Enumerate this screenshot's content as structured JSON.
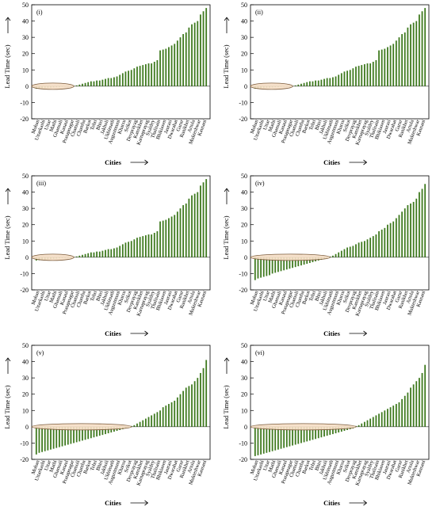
{
  "figure": {
    "ylabel": "Lead Time (sec)",
    "xlabel": "Cities",
    "colors": {
      "bar": "#3f7a1f",
      "ellipse_fill": "#f6dfc6",
      "ellipse_stroke": "#7a5a3a",
      "axis": "#000000"
    },
    "cities": [
      "Mohan",
      "Uttarkashi",
      "Uttar",
      "Mathi",
      "Ghansali",
      "Kanaul",
      "Pratapnagar",
      "Chamoli",
      "Chamba",
      "Barkot",
      "Tehri",
      "Bhiri",
      "Jakholi",
      "Ukhimath",
      "Augustmuni",
      "Kharsu",
      "Srikot",
      "Devprayag",
      "Kanskhet",
      "Karnaprayag",
      "Syaldey",
      "Thalisain",
      "Bhikiasen",
      "Jaurasi",
      "Dwarahat",
      "Garur",
      "Ranikhet",
      "Artola",
      "Mukteshwar",
      "Kausani"
    ]
  },
  "chart_data": [
    {
      "type": "bar",
      "panel_label": "(i)",
      "ylim": [
        -20,
        50
      ],
      "yticks": [
        -20,
        -10,
        0,
        10,
        20,
        30,
        40,
        50
      ],
      "values": [
        -1.5,
        -1.3,
        -1.2,
        -1.0,
        -0.9,
        -0.8,
        -0.7,
        -0.6,
        -0.5,
        -0.4,
        -0.3,
        -0.2,
        -0.1,
        0.2,
        0.5,
        1,
        1.5,
        2,
        2.5,
        3,
        3,
        3.5,
        3.5,
        4,
        4.5,
        5,
        5,
        5.5,
        6,
        7,
        8,
        9,
        9.5,
        10,
        11,
        12,
        12.5,
        13,
        13.5,
        14,
        14,
        15,
        16,
        22,
        22.5,
        23,
        24,
        25,
        26,
        28,
        30,
        32,
        33,
        36,
        38,
        39,
        40,
        44,
        46,
        48
      ]
    },
    {
      "type": "bar",
      "panel_label": "(ii)",
      "ylim": [
        -20,
        50
      ],
      "yticks": [
        -20,
        -10,
        0,
        10,
        20,
        30,
        40,
        50
      ],
      "values": [
        -1.5,
        -1.3,
        -1.2,
        -1.0,
        -0.9,
        -0.8,
        -0.7,
        -0.6,
        -0.5,
        -0.4,
        -0.3,
        -0.2,
        -0.1,
        0.2,
        0.5,
        1,
        1.5,
        2,
        2.5,
        3,
        3,
        3.5,
        3.5,
        4,
        4.5,
        5,
        5,
        5.5,
        6,
        7,
        8,
        9,
        9.5,
        10,
        11,
        12,
        12.5,
        13,
        13.5,
        14,
        14,
        15,
        16,
        22,
        22.5,
        23,
        24,
        25,
        26,
        28,
        30,
        32,
        33,
        36,
        38,
        39,
        40,
        44,
        46,
        48
      ]
    },
    {
      "type": "bar",
      "panel_label": "(iii)",
      "ylim": [
        -20,
        50
      ],
      "yticks": [
        -20,
        -10,
        0,
        10,
        20,
        30,
        40,
        50
      ],
      "values": [
        -2,
        -1.8,
        -1.6,
        -1.4,
        -1.2,
        -1.0,
        -0.9,
        -0.8,
        -0.6,
        -0.5,
        -0.4,
        -0.3,
        -0.2,
        0.2,
        0.5,
        1,
        1.5,
        2,
        2.5,
        3,
        3,
        3.5,
        3.5,
        4,
        4.5,
        5,
        5,
        5.5,
        6,
        7,
        8,
        9,
        9.5,
        10,
        11,
        12,
        12.5,
        13,
        13.5,
        14,
        14,
        15,
        16,
        22,
        22.5,
        23,
        24,
        25,
        26,
        28,
        30,
        32,
        33,
        36,
        38,
        39,
        40,
        44,
        46,
        48
      ]
    },
    {
      "type": "bar",
      "panel_label": "(iv)",
      "ylim": [
        -20,
        50
      ],
      "yticks": [
        -20,
        -10,
        0,
        10,
        20,
        30,
        40,
        50
      ],
      "values": [
        -14,
        -13,
        -12.5,
        -12,
        -11.5,
        -11,
        -10,
        -9.5,
        -9,
        -8.5,
        -8,
        -7.5,
        -7,
        -6.5,
        -6,
        -5.5,
        -5,
        -4.5,
        -4,
        -3.5,
        -3,
        -2.5,
        -2,
        -1.5,
        -1,
        -0.5,
        0.5,
        1,
        2,
        3,
        4,
        5,
        6,
        6.5,
        7,
        8,
        9,
        9.5,
        10,
        11,
        12,
        13,
        14,
        16,
        17,
        18,
        20,
        21,
        22,
        24,
        26,
        28,
        30,
        32,
        33,
        34,
        36,
        40,
        42,
        45
      ]
    },
    {
      "type": "bar",
      "panel_label": "(v)",
      "ylim": [
        -20,
        50
      ],
      "yticks": [
        -20,
        -10,
        0,
        10,
        20,
        30,
        40,
        50
      ],
      "values": [
        -17,
        -16,
        -15.5,
        -15,
        -14.5,
        -14,
        -13.5,
        -13,
        -12.5,
        -12,
        -11.5,
        -11,
        -10.5,
        -10,
        -9.5,
        -9,
        -8.5,
        -8,
        -7.5,
        -7,
        -6.5,
        -6,
        -5.5,
        -5,
        -4.5,
        -4,
        -3.5,
        -3,
        -2.5,
        -2,
        -1.5,
        -1,
        -0.5,
        0.5,
        1,
        2,
        3,
        4,
        5,
        6,
        7,
        8,
        9,
        10,
        12,
        13,
        14,
        15,
        16,
        18,
        20,
        22,
        24,
        25,
        26,
        28,
        30,
        33,
        36,
        41
      ]
    },
    {
      "type": "bar",
      "panel_label": "(vi)",
      "ylim": [
        -20,
        50
      ],
      "yticks": [
        -20,
        -10,
        0,
        10,
        20,
        30,
        40,
        50
      ],
      "values": [
        -18,
        -17.5,
        -17,
        -16.5,
        -16,
        -15.5,
        -15,
        -14.5,
        -14,
        -13.5,
        -13,
        -12.5,
        -12,
        -11.5,
        -11,
        -10.5,
        -10,
        -9.5,
        -9,
        -8.5,
        -8,
        -7.5,
        -7,
        -6.5,
        -6,
        -5.5,
        -5,
        -4.5,
        -4,
        -3.5,
        -3,
        -2.5,
        -2,
        -1.5,
        -1,
        0.5,
        1,
        2,
        3,
        4,
        5,
        6,
        7,
        8,
        9,
        10,
        11,
        12,
        13,
        14,
        15,
        17,
        19,
        21,
        24,
        26,
        28,
        30,
        33,
        38
      ]
    }
  ]
}
